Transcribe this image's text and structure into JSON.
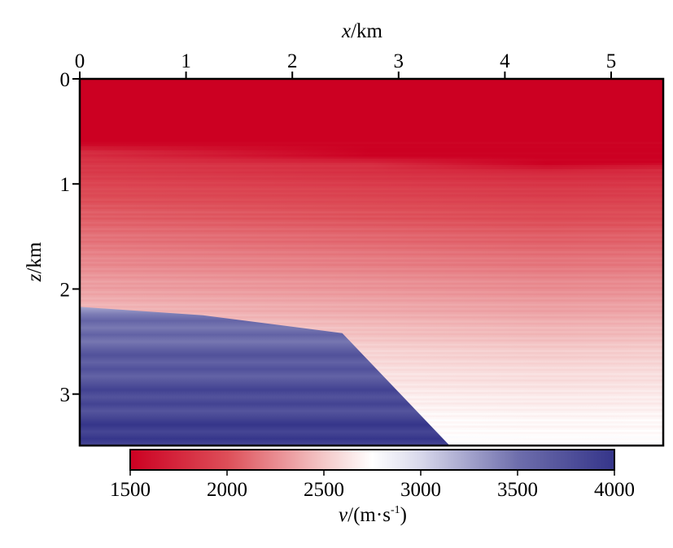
{
  "chart_data": {
    "type": "heatmap",
    "title": "",
    "xlabel_var": "x",
    "xlabel_unit": "/km",
    "ylabel_var": "z",
    "ylabel_unit": "/km",
    "x_axis_position": "top",
    "xlim": [
      0,
      5.49
    ],
    "ylim": [
      0,
      3.49
    ],
    "xticks": [
      "0",
      "1",
      "2",
      "3",
      "4",
      "5"
    ],
    "yticks": [
      "0",
      "1",
      "2",
      "3"
    ],
    "background_velocity_profile": {
      "z": [
        0,
        0.6,
        0.68,
        1.0,
        1.5,
        2.0,
        2.5,
        3.0,
        3.49
      ],
      "v": [
        1500,
        1500,
        1780,
        1950,
        2150,
        2350,
        2560,
        2700,
        2800
      ]
    },
    "high_velocity_body": {
      "polygon_x": [
        0,
        1.16,
        2.47,
        3.48,
        0
      ],
      "polygon_z": [
        2.17,
        2.25,
        2.42,
        3.49,
        3.49
      ],
      "v_top": 3350,
      "v_bottom": 3950
    },
    "colorbar": {
      "label_var": "v",
      "label_unit": "/(m·s",
      "label_exp": "-1",
      "label_close": ")",
      "range": [
        1500,
        4000
      ],
      "ticks": [
        "1500",
        "2000",
        "2500",
        "3000",
        "3500",
        "4000"
      ],
      "position": "bottom",
      "colormap": [
        {
          "v": 1500,
          "color": "#cc0022"
        },
        {
          "v": 2000,
          "color": "#dd4e58"
        },
        {
          "v": 2500,
          "color": "#f4c8c8"
        },
        {
          "v": 2750,
          "color": "#ffffff"
        },
        {
          "v": 3000,
          "color": "#d8d8eb"
        },
        {
          "v": 3500,
          "color": "#6e6eac"
        },
        {
          "v": 4000,
          "color": "#35358a"
        }
      ]
    }
  }
}
